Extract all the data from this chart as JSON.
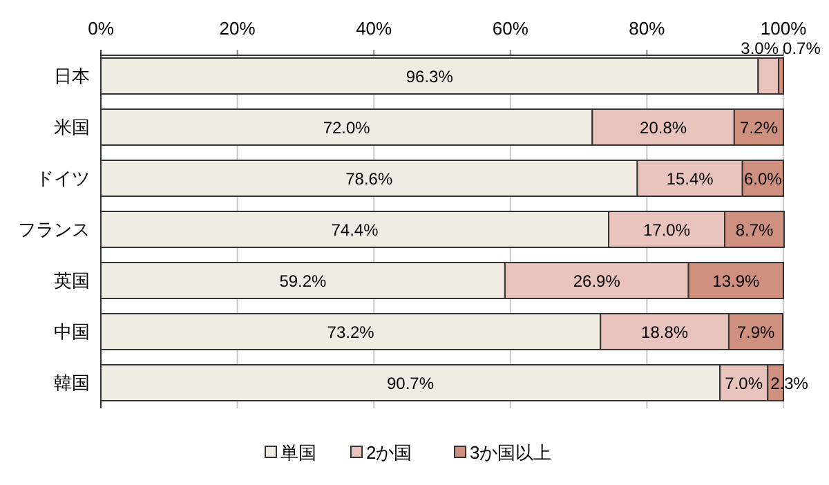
{
  "chart_data": {
    "type": "bar",
    "orientation": "horizontal",
    "stacked": true,
    "categories": [
      "日本",
      "米国",
      "ドイツ",
      "フランス",
      "英国",
      "中国",
      "韓国"
    ],
    "series": [
      {
        "name": "単国",
        "color": "#efede3",
        "values": [
          96.3,
          72.0,
          78.6,
          74.4,
          59.2,
          73.2,
          90.7
        ],
        "value_labels": [
          "96.3%",
          "72.0%",
          "78.6%",
          "74.4%",
          "59.2%",
          "73.2%",
          "90.7%"
        ]
      },
      {
        "name": "2か国",
        "color": "#e8c4bc",
        "values": [
          3.0,
          20.8,
          15.4,
          17.0,
          26.9,
          18.8,
          7.0
        ],
        "value_labels": [
          "3.0%",
          "20.8%",
          "15.4%",
          "17.0%",
          "26.9%",
          "18.8%",
          "7.0%"
        ]
      },
      {
        "name": "3か国以上",
        "color": "#d0907f",
        "values": [
          0.7,
          7.2,
          6.0,
          8.7,
          13.9,
          7.9,
          2.3
        ],
        "value_labels": [
          "0.7%",
          "7.2%",
          "6.0%",
          "8.7%",
          "13.9%",
          "7.9%",
          "2.3%"
        ]
      }
    ],
    "xlim": [
      0,
      100
    ],
    "xticks": [
      {
        "value": 0,
        "label": "0%"
      },
      {
        "value": 20,
        "label": "20%"
      },
      {
        "value": 40,
        "label": "40%"
      },
      {
        "value": 60,
        "label": "60%"
      },
      {
        "value": 80,
        "label": "80%"
      },
      {
        "value": 100,
        "label": "100%"
      }
    ],
    "grid": "x",
    "legend": "bottom"
  }
}
